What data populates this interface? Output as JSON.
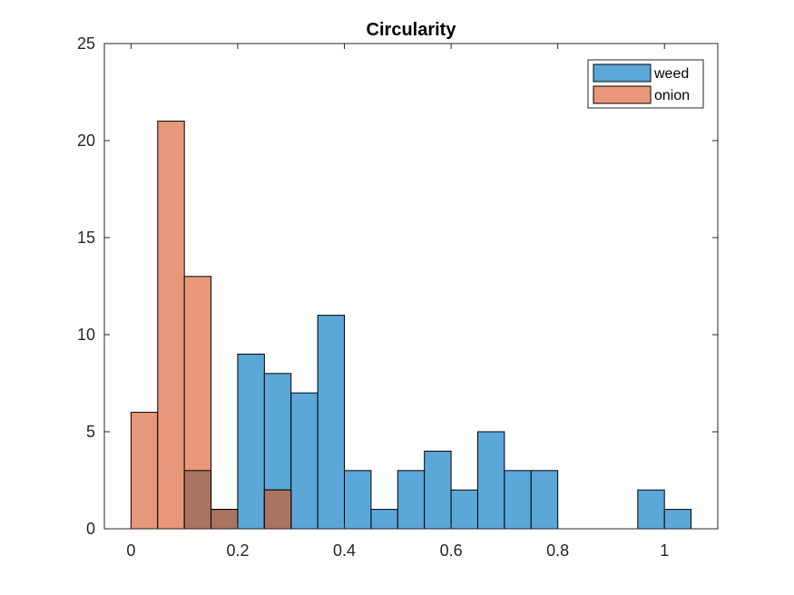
{
  "chart_data": {
    "type": "bar",
    "title": "Circularity",
    "xlabel": "",
    "ylabel": "",
    "xlim": [
      -0.05,
      1.1
    ],
    "ylim": [
      0,
      25
    ],
    "xticks": [
      "0",
      "0.2",
      "0.4",
      "0.6",
      "0.8",
      "1"
    ],
    "yticks": [
      "0",
      "5",
      "10",
      "15",
      "20",
      "25"
    ],
    "bin_width": 0.05,
    "grid": false,
    "legend_position": "top-right",
    "overlap_color": "#a97461",
    "series": [
      {
        "name": "weed",
        "color": "#5ba7d8",
        "bins": [
          {
            "x0": 0.1,
            "value": 3
          },
          {
            "x0": 0.15,
            "value": 1
          },
          {
            "x0": 0.2,
            "value": 9
          },
          {
            "x0": 0.25,
            "value": 8
          },
          {
            "x0": 0.3,
            "value": 7
          },
          {
            "x0": 0.35,
            "value": 11
          },
          {
            "x0": 0.4,
            "value": 3
          },
          {
            "x0": 0.45,
            "value": 1
          },
          {
            "x0": 0.5,
            "value": 3
          },
          {
            "x0": 0.55,
            "value": 4
          },
          {
            "x0": 0.6,
            "value": 2
          },
          {
            "x0": 0.65,
            "value": 5
          },
          {
            "x0": 0.7,
            "value": 3
          },
          {
            "x0": 0.75,
            "value": 3
          },
          {
            "x0": 0.95,
            "value": 2
          },
          {
            "x0": 1.0,
            "value": 1
          }
        ]
      },
      {
        "name": "onion",
        "color": "#e9977a",
        "bins": [
          {
            "x0": 0.0,
            "value": 6
          },
          {
            "x0": 0.05,
            "value": 21
          },
          {
            "x0": 0.1,
            "value": 13
          },
          {
            "x0": 0.15,
            "value": 1
          },
          {
            "x0": 0.25,
            "value": 2
          }
        ]
      }
    ]
  }
}
